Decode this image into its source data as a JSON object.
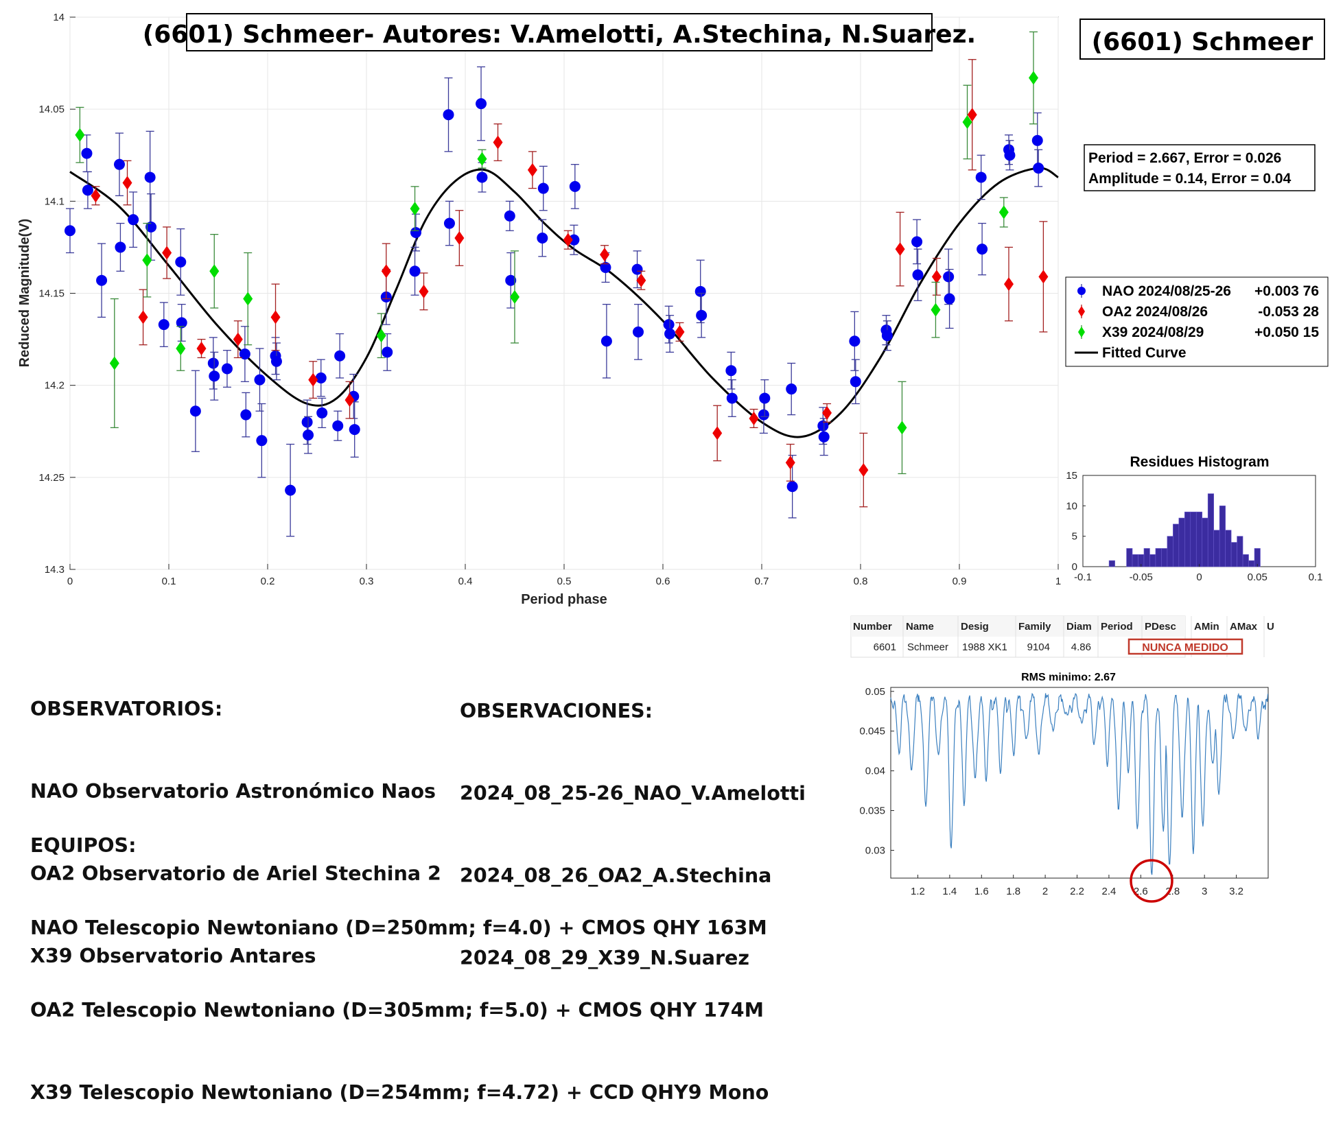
{
  "title": "(6601) Schmeer- Autores: V.Amelotti, A.Stechina, N.Suarez.",
  "object_label": "(6601) Schmeer",
  "fit_info": {
    "line1": "Period =  2.667, Error = 0.026",
    "line2": "Amplitude = 0.14, Error = 0.04"
  },
  "chart_data": [
    {
      "type": "scatter",
      "title": "",
      "xlabel": "Period phase",
      "ylabel": "Reduced Magnitude(V)",
      "xlim": [
        0,
        1
      ],
      "ylim": [
        14,
        14.3
      ],
      "y_reversed": true,
      "x_ticks": [
        "0",
        "0.1",
        "0.2",
        "0.3",
        "0.4",
        "0.5",
        "0.6",
        "0.7",
        "0.8",
        "0.9",
        "1"
      ],
      "y_ticks": [
        "14",
        "14.05",
        "14.1",
        "14.15",
        "14.2",
        "14.25",
        "14.3"
      ],
      "grid": true,
      "legend_position": "right",
      "series": [
        {
          "name": "NAO 2024/08/25-26",
          "legend_offset": "+0.003 76",
          "color": "#0000ee",
          "marker": "circle",
          "points": [
            [
              0.0,
              14.116,
              0.012
            ],
            [
              0.017,
              14.074,
              0.01
            ],
            [
              0.018,
              14.094,
              0.01
            ],
            [
              0.032,
              14.143,
              0.02
            ],
            [
              0.05,
              14.08,
              0.017
            ],
            [
              0.051,
              14.125,
              0.013
            ],
            [
              0.064,
              14.11,
              0.015
            ],
            [
              0.081,
              14.087,
              0.025
            ],
            [
              0.082,
              14.114,
              0.018
            ],
            [
              0.095,
              14.167,
              0.012
            ],
            [
              0.112,
              14.133,
              0.018
            ],
            [
              0.113,
              14.166,
              0.01
            ],
            [
              0.127,
              14.214,
              0.022
            ],
            [
              0.145,
              14.188,
              0.014
            ],
            [
              0.146,
              14.195,
              0.013
            ],
            [
              0.159,
              14.191,
              0.01
            ],
            [
              0.177,
              14.183,
              0.015
            ],
            [
              0.178,
              14.216,
              0.012
            ],
            [
              0.192,
              14.197,
              0.017
            ],
            [
              0.194,
              14.23,
              0.02
            ],
            [
              0.208,
              14.184,
              0.01
            ],
            [
              0.209,
              14.187,
              0.01
            ],
            [
              0.223,
              14.257,
              0.025
            ],
            [
              0.24,
              14.22,
              0.012
            ],
            [
              0.241,
              14.227,
              0.01
            ],
            [
              0.254,
              14.196,
              0.01
            ],
            [
              0.255,
              14.215,
              0.008
            ],
            [
              0.271,
              14.222,
              0.008
            ],
            [
              0.273,
              14.184,
              0.012
            ],
            [
              0.287,
              14.206,
              0.012
            ],
            [
              0.288,
              14.224,
              0.015
            ],
            [
              0.32,
              14.152,
              0.015
            ],
            [
              0.321,
              14.182,
              0.01
            ],
            [
              0.349,
              14.138,
              0.013
            ],
            [
              0.35,
              14.117,
              0.01
            ],
            [
              0.383,
              14.053,
              0.02
            ],
            [
              0.384,
              14.112,
              0.012
            ],
            [
              0.416,
              14.047,
              0.02
            ],
            [
              0.417,
              14.087,
              0.008
            ],
            [
              0.445,
              14.108,
              0.008
            ],
            [
              0.446,
              14.143,
              0.015
            ],
            [
              0.478,
              14.12,
              0.01
            ],
            [
              0.479,
              14.093,
              0.012
            ],
            [
              0.51,
              14.121,
              0.008
            ],
            [
              0.511,
              14.092,
              0.012
            ],
            [
              0.542,
              14.136,
              0.008
            ],
            [
              0.543,
              14.176,
              0.02
            ],
            [
              0.574,
              14.137,
              0.01
            ],
            [
              0.575,
              14.171,
              0.015
            ],
            [
              0.606,
              14.167,
              0.01
            ],
            [
              0.607,
              14.172,
              0.01
            ],
            [
              0.638,
              14.149,
              0.017
            ],
            [
              0.639,
              14.162,
              0.012
            ],
            [
              0.669,
              14.192,
              0.01
            ],
            [
              0.67,
              14.207,
              0.01
            ],
            [
              0.702,
              14.216,
              0.01
            ],
            [
              0.703,
              14.207,
              0.01
            ],
            [
              0.73,
              14.202,
              0.014
            ],
            [
              0.731,
              14.255,
              0.017
            ],
            [
              0.762,
              14.222,
              0.01
            ],
            [
              0.763,
              14.228,
              0.01
            ],
            [
              0.794,
              14.176,
              0.016
            ],
            [
              0.795,
              14.198,
              0.012
            ],
            [
              0.826,
              14.17,
              0.008
            ],
            [
              0.827,
              14.173,
              0.008
            ],
            [
              0.857,
              14.122,
              0.012
            ],
            [
              0.858,
              14.14,
              0.014
            ],
            [
              0.889,
              14.141,
              0.015
            ],
            [
              0.89,
              14.153,
              0.016
            ],
            [
              0.922,
              14.087,
              0.012
            ],
            [
              0.923,
              14.126,
              0.014
            ],
            [
              0.95,
              14.072,
              0.008
            ],
            [
              0.951,
              14.075,
              0.008
            ],
            [
              0.979,
              14.067,
              0.015
            ],
            [
              0.98,
              14.082,
              0.01
            ]
          ]
        },
        {
          "name": "OA2 2024/08/26",
          "legend_offset": "-0.053 28",
          "color": "#ee0000",
          "marker": "diamond",
          "points": [
            [
              0.026,
              14.097,
              0.005
            ],
            [
              0.058,
              14.09,
              0.012
            ],
            [
              0.074,
              14.163,
              0.015
            ],
            [
              0.098,
              14.128,
              0.014
            ],
            [
              0.133,
              14.18,
              0.005
            ],
            [
              0.17,
              14.175,
              0.01
            ],
            [
              0.208,
              14.163,
              0.018
            ],
            [
              0.246,
              14.197,
              0.01
            ],
            [
              0.283,
              14.208,
              0.01
            ],
            [
              0.32,
              14.138,
              0.015
            ],
            [
              0.358,
              14.149,
              0.01
            ],
            [
              0.394,
              14.12,
              0.015
            ],
            [
              0.433,
              14.068,
              0.01
            ],
            [
              0.468,
              14.083,
              0.01
            ],
            [
              0.504,
              14.121,
              0.005
            ],
            [
              0.541,
              14.129,
              0.005
            ],
            [
              0.578,
              14.143,
              0.005
            ],
            [
              0.617,
              14.171,
              0.005
            ],
            [
              0.655,
              14.226,
              0.015
            ],
            [
              0.692,
              14.218,
              0.005
            ],
            [
              0.729,
              14.242,
              0.01
            ],
            [
              0.766,
              14.215,
              0.005
            ],
            [
              0.803,
              14.246,
              0.02
            ],
            [
              0.84,
              14.126,
              0.02
            ],
            [
              0.877,
              14.141,
              0.01
            ],
            [
              0.913,
              14.053,
              0.03
            ],
            [
              0.95,
              14.145,
              0.02
            ],
            [
              0.985,
              14.141,
              0.03
            ]
          ]
        },
        {
          "name": "X39 2024/08/29",
          "legend_offset": "+0.050 15",
          "color": "#00dd00",
          "marker": "diamond",
          "points": [
            [
              0.01,
              14.064,
              0.015
            ],
            [
              0.045,
              14.188,
              0.035
            ],
            [
              0.078,
              14.132,
              0.02
            ],
            [
              0.112,
              14.18,
              0.012
            ],
            [
              0.146,
              14.138,
              0.02
            ],
            [
              0.18,
              14.153,
              0.025
            ],
            [
              0.315,
              14.173,
              0.012
            ],
            [
              0.349,
              14.104,
              0.012
            ],
            [
              0.417,
              14.077,
              0.005
            ],
            [
              0.45,
              14.152,
              0.025
            ],
            [
              0.842,
              14.223,
              0.025
            ],
            [
              0.876,
              14.159,
              0.015
            ],
            [
              0.908,
              14.057,
              0.02
            ],
            [
              0.945,
              14.106,
              0.008
            ],
            [
              0.975,
              14.033,
              0.025
            ]
          ]
        }
      ],
      "fitted_curve": {
        "name": "Fitted Curve",
        "points": [
          [
            0.0,
            14.084
          ],
          [
            0.05,
            14.103
          ],
          [
            0.1,
            14.135
          ],
          [
            0.15,
            14.168
          ],
          [
            0.2,
            14.195
          ],
          [
            0.24,
            14.21
          ],
          [
            0.27,
            14.207
          ],
          [
            0.3,
            14.185
          ],
          [
            0.33,
            14.148
          ],
          [
            0.36,
            14.11
          ],
          [
            0.39,
            14.089
          ],
          [
            0.42,
            14.083
          ],
          [
            0.45,
            14.095
          ],
          [
            0.48,
            14.112
          ],
          [
            0.51,
            14.126
          ],
          [
            0.55,
            14.14
          ],
          [
            0.6,
            14.165
          ],
          [
            0.65,
            14.196
          ],
          [
            0.7,
            14.22
          ],
          [
            0.74,
            14.228
          ],
          [
            0.78,
            14.215
          ],
          [
            0.82,
            14.185
          ],
          [
            0.86,
            14.145
          ],
          [
            0.9,
            14.112
          ],
          [
            0.94,
            14.09
          ],
          [
            0.98,
            14.082
          ],
          [
            1.0,
            14.087
          ]
        ]
      }
    },
    {
      "type": "bar",
      "title": "Residues Histogram",
      "xlim": [
        -0.1,
        0.1
      ],
      "ylim": [
        0,
        15
      ],
      "x_ticks": [
        "-0.1",
        "-0.05",
        "0",
        "0.05",
        "0.1"
      ],
      "y_ticks": [
        "0",
        "5",
        "10",
        "15"
      ],
      "color": "#3b2ca0",
      "bin_width": 0.005,
      "bin_start": -0.0775,
      "values": [
        1,
        0,
        0,
        3,
        2,
        2,
        3,
        2,
        3,
        3,
        5,
        7,
        8,
        9,
        9,
        9,
        8,
        12,
        6,
        10,
        6,
        4,
        5,
        2,
        1,
        3
      ]
    },
    {
      "type": "line",
      "title": "RMS minimo: 2.67",
      "xlim": [
        1.03,
        3.4
      ],
      "ylim": [
        0.0265,
        0.0505
      ],
      "x_ticks": [
        "1.2",
        "1.4",
        "1.6",
        "1.8",
        "2",
        "2.2",
        "2.4",
        "2.6",
        "2.8",
        "3",
        "3.2"
      ],
      "y_ticks": [
        "0.03",
        "0.035",
        "0.04",
        "0.045",
        "0.05"
      ],
      "color": "#3a7fbf",
      "marker_color": "#cc0000",
      "minimum_x": 2.67,
      "dips": [
        [
          1.08,
          0.043
        ],
        [
          1.16,
          0.04
        ],
        [
          1.25,
          0.0355
        ],
        [
          1.33,
          0.042
        ],
        [
          1.41,
          0.031
        ],
        [
          1.49,
          0.037
        ],
        [
          1.56,
          0.039
        ],
        [
          1.63,
          0.04
        ],
        [
          1.72,
          0.041
        ],
        [
          1.8,
          0.043
        ],
        [
          1.88,
          0.044
        ],
        [
          1.96,
          0.042
        ],
        [
          2.05,
          0.045
        ],
        [
          2.14,
          0.047
        ],
        [
          2.23,
          0.046
        ],
        [
          2.31,
          0.044
        ],
        [
          2.39,
          0.042
        ],
        [
          2.46,
          0.035
        ],
        [
          2.52,
          0.041
        ],
        [
          2.58,
          0.033
        ],
        [
          2.67,
          0.027
        ],
        [
          2.74,
          0.033
        ],
        [
          2.78,
          0.028
        ],
        [
          2.86,
          0.034
        ],
        [
          2.93,
          0.031
        ],
        [
          2.99,
          0.033
        ],
        [
          3.05,
          0.041
        ],
        [
          3.09,
          0.037
        ],
        [
          3.18,
          0.044
        ],
        [
          3.26,
          0.045
        ],
        [
          3.34,
          0.045
        ]
      ]
    }
  ],
  "table": {
    "headers": [
      "Number",
      "Name",
      "Desig",
      "Family",
      "Diam",
      "Period",
      "PDesc",
      "AMin",
      "AMax",
      "U"
    ],
    "row": [
      "6601",
      "Schmeer",
      "1988 XK1",
      "9104",
      "4.86"
    ],
    "status": "NUNCA MEDIDO"
  },
  "notes": {
    "observatorios_title": "OBSERVATORIOS:",
    "observatorios": [
      "NAO Observatorio Astronómico Naos",
      "OA2 Observatorio de Ariel Stechina 2",
      "X39 Observatorio Antares"
    ],
    "observaciones_title": "OBSERVACIONES:",
    "observaciones": [
      "2024_08_25-26_NAO_V.Amelotti",
      "2024_08_26_OA2_A.Stechina",
      "2024_08_29_X39_N.Suarez"
    ],
    "equipos_title": "EQUIPOS:",
    "equipos": [
      "NAO Telescopio Newtoniano (D=250mm; f=4.0) + CMOS QHY 163M",
      "OA2 Telescopio Newtoniano (D=305mm; f=5.0) + CMOS QHY 174M",
      "X39 Telescopio Newtoniano (D=254mm; f=4.72) + CCD QHY9 Mono"
    ]
  }
}
